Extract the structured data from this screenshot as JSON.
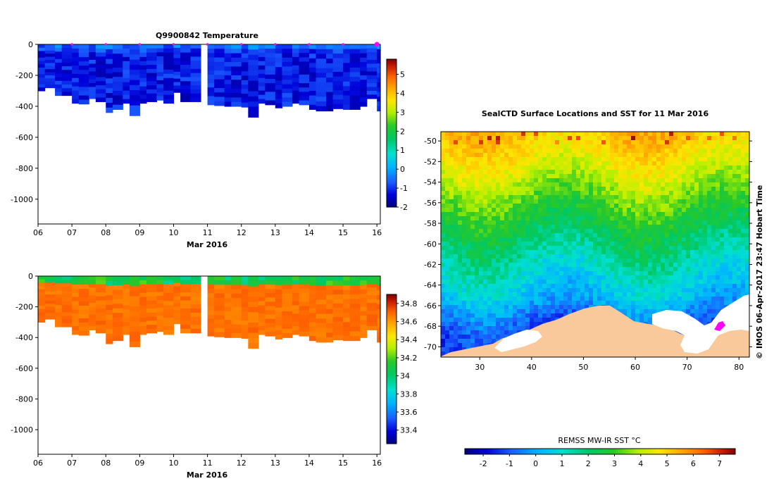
{
  "chart_data": [
    {
      "type": "heatmap",
      "title": "Q9900842  Temperature",
      "xlabel": "Mar 2016",
      "x_ticks": [
        "06",
        "07",
        "08",
        "09",
        "10",
        "11",
        "12",
        "13",
        "14",
        "15",
        "16"
      ],
      "x_range": [
        6,
        16.1
      ],
      "y_ticks": [
        "0",
        "-200",
        "-400",
        "-600",
        "-800",
        "-1000"
      ],
      "y_tick_values": [
        0,
        -200,
        -400,
        -600,
        -800,
        -1000
      ],
      "ylim": [
        -1160,
        0
      ],
      "profile_times": [
        6.0,
        6.2,
        6.5,
        6.7,
        7.0,
        7.2,
        7.5,
        7.7,
        8.0,
        8.2,
        8.5,
        8.7,
        9.0,
        9.2,
        9.5,
        9.7,
        10.0,
        10.2,
        10.5,
        10.8,
        11.0,
        11.2,
        11.5,
        11.7,
        12.0,
        12.2,
        12.5,
        12.7,
        13.0,
        13.2,
        13.5,
        13.7,
        14.0,
        14.2,
        14.5,
        14.7,
        15.0,
        15.2,
        15.5,
        15.7,
        16.0
      ],
      "profile_max_depth": [
        300,
        280,
        330,
        330,
        380,
        385,
        350,
        370,
        440,
        420,
        380,
        460,
        380,
        370,
        360,
        380,
        310,
        370,
        370,
        370,
        390,
        395,
        400,
        400,
        405,
        470,
        380,
        390,
        410,
        400,
        380,
        390,
        420,
        430,
        430,
        415,
        420,
        420,
        400,
        350,
        430
      ],
      "gap": [
        10.65,
        10.9
      ],
      "colorbar": {
        "min": -2,
        "max": 5.8,
        "ticks": [
          "5",
          "4",
          "3",
          "2",
          "1",
          "0",
          "-1",
          "-2"
        ],
        "tick_values": [
          5,
          4,
          3,
          2,
          1,
          0,
          -1,
          -2
        ]
      },
      "field": {
        "surface_value": 0.8,
        "deep_value": -1.2
      }
    },
    {
      "type": "heatmap",
      "title": "",
      "xlabel": "Mar 2016",
      "x_ticks": [
        "06",
        "07",
        "08",
        "09",
        "10",
        "11",
        "12",
        "13",
        "14",
        "15",
        "16"
      ],
      "x_range": [
        6,
        16.1
      ],
      "y_ticks": [
        "0",
        "-200",
        "-400",
        "-600",
        "-800",
        "-1000"
      ],
      "y_tick_values": [
        0,
        -200,
        -400,
        -600,
        -800,
        -1000
      ],
      "ylim": [
        -1160,
        0
      ],
      "colorbar": {
        "min": 33.25,
        "max": 34.9,
        "ticks": [
          "34.8",
          "34.6",
          "34.4",
          "34.2",
          "34",
          "33.8",
          "33.6",
          "33.4"
        ],
        "tick_values": [
          34.8,
          34.6,
          34.4,
          34.2,
          34.0,
          33.8,
          33.6,
          33.4
        ]
      },
      "field": {
        "surface_value": 34.0,
        "deep_value": 34.6
      }
    },
    {
      "type": "heatmap",
      "title": "SealCTD Surface Locations and SST for 11 Mar 2016",
      "xlabel": "",
      "x_ticks": [
        "30",
        "40",
        "50",
        "60",
        "70",
        "80"
      ],
      "x_tick_values": [
        30,
        40,
        50,
        60,
        70,
        80
      ],
      "xlim": [
        22.5,
        82
      ],
      "y_ticks": [
        "-50",
        "-52",
        "-54",
        "-56",
        "-58",
        "-60",
        "-62",
        "-64",
        "-66",
        "-68",
        "-70"
      ],
      "y_tick_values": [
        -50,
        -52,
        -54,
        -56,
        -58,
        -60,
        -62,
        -64,
        -66,
        -68,
        -70
      ],
      "ylim": [
        -71,
        -49.1
      ],
      "sst_by_latitude": [
        {
          "lat": -49.5,
          "sst": 4.6
        },
        {
          "lat": -51,
          "sst": 4.2
        },
        {
          "lat": -53,
          "sst": 3.6
        },
        {
          "lat": -55,
          "sst": 2.9
        },
        {
          "lat": -57,
          "sst": 2.3
        },
        {
          "lat": -59,
          "sst": 1.7
        },
        {
          "lat": -61,
          "sst": 1.1
        },
        {
          "lat": -63,
          "sst": 0.6
        },
        {
          "lat": -65,
          "sst": 0.1
        },
        {
          "lat": -67,
          "sst": -0.8
        },
        {
          "lat": -69,
          "sst": -1.4
        }
      ],
      "colorbar": {
        "label": "REMSS MW-IR SST °C",
        "min": -2.7,
        "max": 7.6,
        "ticks": [
          "-2",
          "-1",
          "0",
          "1",
          "2",
          "3",
          "4",
          "5",
          "6",
          "7"
        ],
        "tick_values": [
          -2,
          -1,
          0,
          1,
          2,
          3,
          4,
          5,
          6,
          7
        ]
      },
      "annotation": "© IMOS 06-Apr-2017 23:47 Hobart Time"
    }
  ],
  "colors": {
    "land": "#f9c89b",
    "seal_marker": "#ff00ff",
    "colormap": [
      "#000080",
      "#0000d8",
      "#1a5dff",
      "#00b4ff",
      "#00e0d0",
      "#00c864",
      "#28c828",
      "#b4f000",
      "#ffe600",
      "#ffaa00",
      "#ff6400",
      "#c81e00",
      "#800000"
    ]
  }
}
